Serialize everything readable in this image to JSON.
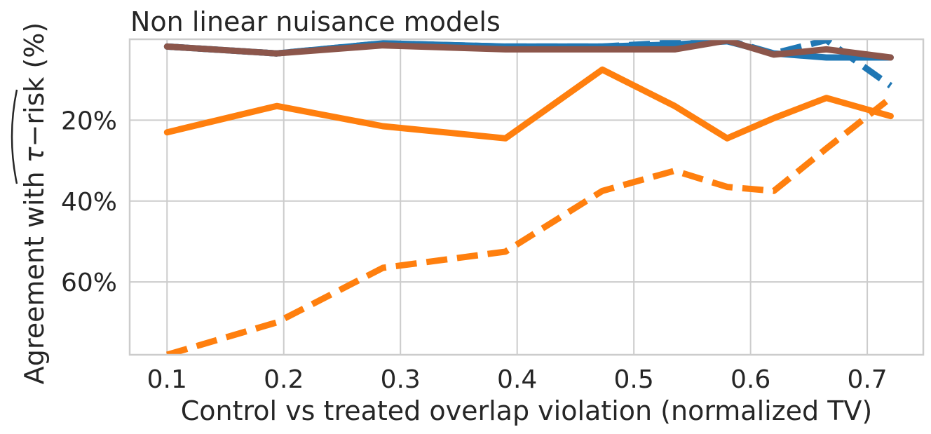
{
  "chart_data": {
    "type": "line",
    "title": "Non linear nuisance models",
    "xlabel": "Control vs treated overlap violation (normalized TV)",
    "ylabel_prefix": "Agreement with ",
    "ylabel_math_symbol": "τ",
    "ylabel_math_rest": "−risk",
    "ylabel_suffix": " (%)",
    "xlim": [
      0.068,
      0.748
    ],
    "ylim": [
      78,
      0
    ],
    "x_ticks": [
      0.1,
      0.2,
      0.3,
      0.4,
      0.5,
      0.6,
      0.7
    ],
    "x_tick_labels": [
      "0.1",
      "0.2",
      "0.3",
      "0.4",
      "0.5",
      "0.6",
      "0.7"
    ],
    "y_ticks": [
      20,
      40,
      60
    ],
    "y_tick_labels": [
      "20%",
      "40%",
      "60%"
    ],
    "grid": true,
    "series": [
      {
        "color": "#1f77b4",
        "dash": "solid",
        "x": [
          0.1,
          0.194,
          0.285,
          0.39,
          0.473,
          0.535,
          0.58,
          0.62,
          0.665,
          0.72
        ],
        "y": [
          1.8,
          3.5,
          1.0,
          1.8,
          1.8,
          1.3,
          0.5,
          3.5,
          4.5,
          4.5
        ]
      },
      {
        "color": "#1f77b4",
        "dash": "dashed",
        "x": [
          0.1,
          0.194,
          0.285,
          0.39,
          0.473,
          0.535,
          0.58,
          0.62,
          0.665,
          0.72
        ],
        "y": [
          1.8,
          3.5,
          1.0,
          1.8,
          1.8,
          0.8,
          0.2,
          3.5,
          0.2,
          11.5
        ]
      },
      {
        "color": "#8c564b",
        "dash": "solid",
        "x": [
          0.1,
          0.194,
          0.285,
          0.39,
          0.473,
          0.535,
          0.58,
          0.62,
          0.665,
          0.72
        ],
        "y": [
          1.8,
          3.5,
          1.5,
          2.5,
          2.5,
          2.5,
          0.3,
          3.8,
          2.5,
          4.5
        ]
      },
      {
        "color": "#8c564b",
        "dash": "dotted",
        "x": [
          0.1,
          0.194,
          0.285,
          0.39,
          0.473
        ],
        "y": [
          1.8,
          3.5,
          1.5,
          2.5,
          2.5
        ]
      },
      {
        "color": "#ff7f0e",
        "dash": "solid",
        "x": [
          0.1,
          0.194,
          0.285,
          0.39,
          0.473,
          0.535,
          0.58,
          0.62,
          0.665,
          0.72
        ],
        "y": [
          23,
          16.5,
          21.5,
          24.5,
          7.5,
          16.5,
          24.5,
          19.5,
          14.5,
          19
        ]
      },
      {
        "color": "#ff7f0e",
        "dash": "dashed",
        "x": [
          0.1,
          0.194,
          0.285,
          0.39,
          0.473,
          0.535,
          0.58,
          0.62,
          0.665,
          0.72
        ],
        "y": [
          78,
          70,
          56.5,
          52.5,
          37.5,
          32.5,
          36.5,
          37.5,
          27,
          14.5
        ]
      }
    ]
  }
}
